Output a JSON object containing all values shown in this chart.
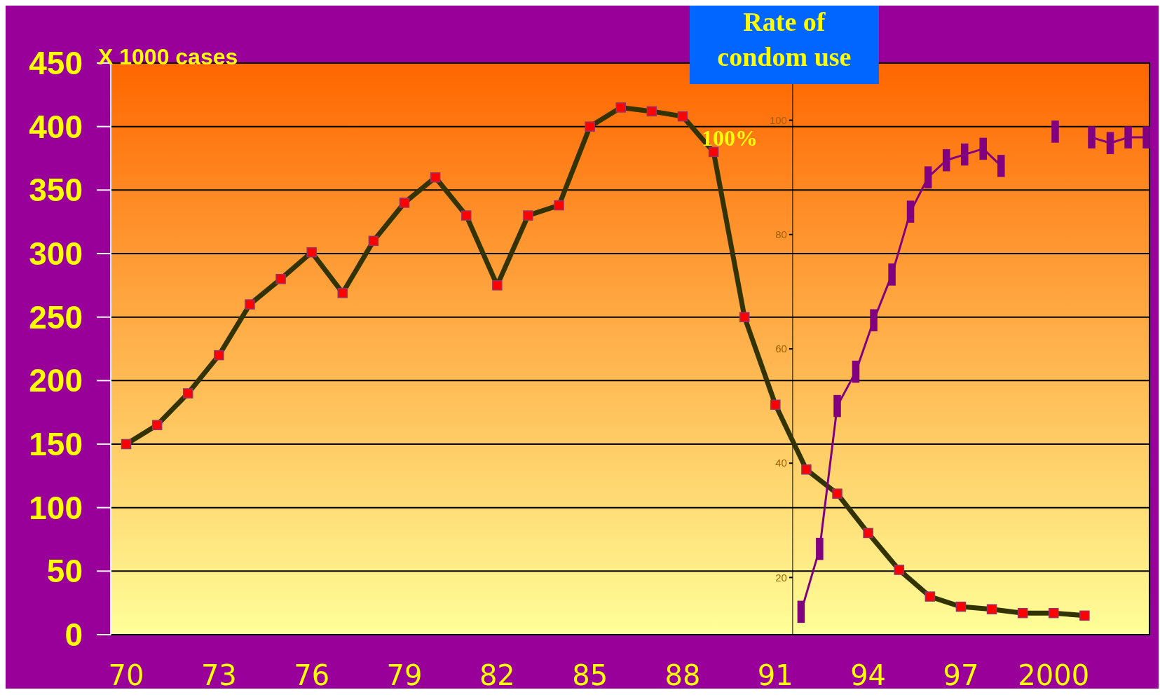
{
  "chart_data": {
    "type": "line",
    "ylabel": "X 1000 cases",
    "y2label": "Rate of condom use",
    "annotations": [
      "100%"
    ],
    "xlim": [
      1969.5,
      2003.1
    ],
    "xticks": [
      {
        "value": 1970,
        "label": "70"
      },
      {
        "value": 1973,
        "label": "73"
      },
      {
        "value": 1976,
        "label": "76"
      },
      {
        "value": 1979,
        "label": "79"
      },
      {
        "value": 1982,
        "label": "82"
      },
      {
        "value": 1985,
        "label": "85"
      },
      {
        "value": 1988,
        "label": "88"
      },
      {
        "value": 1991,
        "label": "91"
      },
      {
        "value": 1994,
        "label": "94"
      },
      {
        "value": 1997,
        "label": "97"
      },
      {
        "value": 2000,
        "label": "2000"
      }
    ],
    "ylim": [
      0,
      450
    ],
    "yticks": [
      0,
      50,
      100,
      150,
      200,
      250,
      300,
      350,
      400,
      450
    ],
    "y2lim": [
      10,
      110
    ],
    "y2ticks": [
      20,
      40,
      60,
      80,
      100
    ],
    "grid": "y",
    "line_style": "solid",
    "series": [
      {
        "color": "#333300",
        "marker": "square",
        "x": [
          1970,
          1971,
          1972,
          1973,
          1974,
          1975,
          1976,
          1977,
          1978,
          1979,
          1980,
          1981,
          1982,
          1983,
          1984,
          1985,
          1986,
          1987,
          1988,
          1989,
          1990,
          1991,
          1992,
          1993,
          1994,
          1995,
          1996,
          1997,
          1998,
          1999,
          2000,
          2001
        ],
        "values": [
          150,
          165,
          190,
          220,
          260,
          280,
          301,
          269,
          310,
          340,
          360,
          330,
          275,
          330,
          338,
          400,
          415,
          412,
          408,
          380,
          250,
          181,
          130,
          111,
          80,
          51,
          30,
          22,
          20,
          17,
          17,
          15
        ]
      },
      {
        "color": "#800080",
        "marker": "square",
        "axis": "y2",
        "x": [
          1991.83,
          1992.43,
          1993.0,
          1993.6,
          1994.18,
          1994.77,
          1995.37,
          1995.94,
          1996.53,
          1997.12,
          1997.72,
          1998.3,
          1998.89,
          1999.48,
          2000.05,
          2000.64,
          2001.23,
          2001.83,
          2002.41,
          2003.0
        ],
        "values": [
          14,
          25,
          50,
          56,
          65,
          73,
          84,
          90,
          93,
          94,
          95,
          92,
          null,
          null,
          98,
          null,
          97,
          96,
          97,
          97
        ]
      }
    ]
  }
}
